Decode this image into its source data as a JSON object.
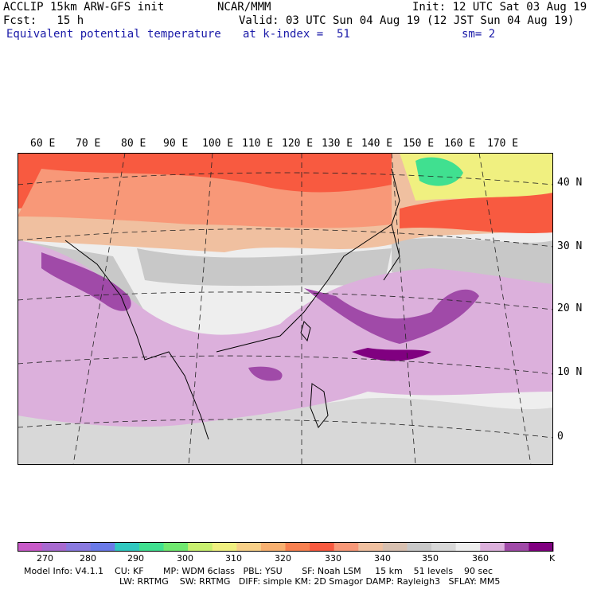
{
  "header": {
    "model": "ACCLIP 15km ARW-GFS init",
    "org": "NCAR/MMM",
    "init": "Init: 12 UTC Sat 03 Aug 19",
    "fcst": "Fcst:   15 h",
    "valid": "Valid: 03 UTC Sun 04 Aug 19 (12 JST Sun 04 Aug 19)",
    "field": "Equivalent potential temperature",
    "level": "at k-index =  51",
    "smooth": "sm= 2"
  },
  "longitude_labels": [
    "60 E",
    "70 E",
    "80 E",
    "90 E",
    "100 E",
    "110 E",
    "120 E",
    "130 E",
    "140 E",
    "150 E",
    "160 E",
    "170 E"
  ],
  "latitude_labels": [
    "40 N",
    "30 N",
    "20 N",
    "10 N",
    "0"
  ],
  "colorbar": {
    "colors": [
      "#c85ac8",
      "#a86ad0",
      "#8a7ae0",
      "#6a7ae8",
      "#30c8c0",
      "#40e090",
      "#70e870",
      "#c8f070",
      "#f0f080",
      "#f8d088",
      "#f8b070",
      "#f88050",
      "#f85a40",
      "#f89878",
      "#f0c0a0",
      "#d8c0b0",
      "#c8c8c8",
      "#d8d8d8",
      "#eeeeee",
      "#dcb0dc",
      "#a04aa8",
      "#800080"
    ],
    "ticks": [
      "270",
      "280",
      "290",
      "300",
      "310",
      "320",
      "330",
      "340",
      "350",
      "360"
    ],
    "unit": "K"
  },
  "model_info": {
    "line1": "Model Info: V4.1.1    CU: KF       MP: WDM 6class   PBL: YSU       SF: Noah LSM     15 km    51 levels    90 sec",
    "line2": "LW: RRTMG    SW: RRTMG   DIFF: simple KM: 2D Smagor DAMP: Rayleigh3   SFLAY: MM5"
  }
}
